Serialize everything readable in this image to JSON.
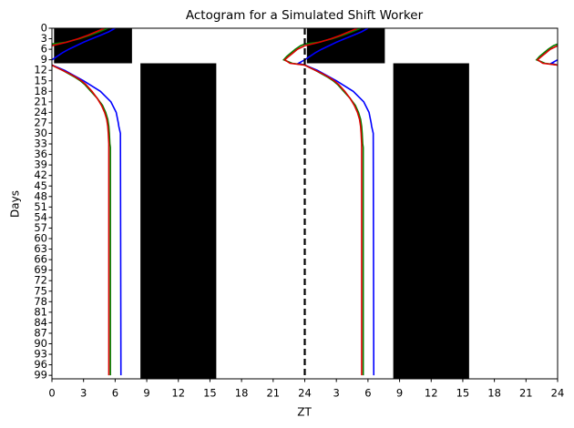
{
  "chart_data": {
    "type": "actogram",
    "title": "Actogram for a Simulated Shift Worker",
    "x_label": "ZT",
    "y_label": "Days",
    "xlim": [
      0,
      48
    ],
    "ylim": [
      0,
      100
    ],
    "y_inverted": true,
    "xticks": [
      0,
      3,
      6,
      9,
      12,
      15,
      18,
      21,
      24,
      {
        "value": 27,
        "label": "3"
      },
      {
        "value": 30,
        "label": "6"
      },
      {
        "value": 33,
        "label": "9"
      },
      {
        "value": 36,
        "label": "12"
      },
      {
        "value": 39,
        "label": "15"
      },
      {
        "value": 42,
        "label": "18"
      },
      {
        "value": 45,
        "label": "21"
      },
      {
        "value": 48,
        "label": "24"
      }
    ],
    "yticks": [
      0,
      3,
      6,
      9,
      12,
      15,
      18,
      21,
      24,
      27,
      30,
      33,
      36,
      39,
      42,
      45,
      48,
      51,
      54,
      57,
      60,
      63,
      66,
      69,
      72,
      75,
      78,
      81,
      84,
      87,
      90,
      93,
      96,
      99
    ],
    "period": 24,
    "divider": 24,
    "dark_periods": [
      {
        "from_day": 0,
        "to_day": 10,
        "start": 0.2,
        "end": 7.6
      },
      {
        "from_day": 10,
        "to_day": 100,
        "start": 8.4,
        "end": 15.6
      }
    ],
    "series": [
      {
        "color": "#0000ff",
        "days": [
          0,
          1,
          2,
          3,
          4,
          5,
          6,
          7,
          8,
          9,
          null,
          9,
          10,
          10.5,
          null,
          10.5,
          11,
          12,
          13,
          15,
          18,
          21,
          24,
          27,
          28,
          30,
          99
        ],
        "values": [
          6.0,
          5.4,
          4.6,
          3.8,
          3.0,
          2.3,
          1.6,
          1.0,
          0.5,
          0,
          null,
          24,
          23.4,
          24,
          null,
          0,
          0.4,
          1.2,
          1.8,
          3.0,
          4.6,
          5.6,
          6.1,
          6.3,
          6.35,
          6.5,
          6.55
        ]
      },
      {
        "color": "#008000",
        "days": [
          0,
          1,
          2,
          3,
          4,
          4.5,
          null,
          4.5,
          5,
          6,
          7,
          8,
          9,
          10,
          10.5,
          null,
          10.5,
          11,
          12,
          13,
          14,
          15,
          16,
          18,
          20,
          22,
          24,
          26,
          28,
          30,
          33,
          34,
          99
        ],
        "values": [
          5.3,
          4.5,
          3.6,
          2.6,
          1.3,
          0,
          null,
          24,
          23.6,
          23.1,
          22.7,
          22.3,
          22.0,
          22.8,
          24,
          null,
          0,
          0.3,
          1.0,
          1.6,
          2.2,
          2.7,
          3.1,
          3.7,
          4.3,
          4.8,
          5.1,
          5.3,
          5.4,
          5.45,
          5.5,
          5.55,
          5.55
        ]
      },
      {
        "color": "#dd0000",
        "days": [
          0,
          1,
          2,
          3,
          4,
          5,
          null,
          5,
          6,
          7,
          8,
          9,
          10,
          10.5,
          null,
          10.5,
          11,
          12,
          13,
          14,
          15,
          16,
          18,
          20,
          22,
          24,
          26,
          28,
          30,
          33,
          34,
          99
        ],
        "values": [
          5.0,
          4.2,
          3.4,
          2.5,
          1.4,
          0.0,
          null,
          24,
          23.3,
          22.9,
          22.5,
          22.1,
          22.6,
          24,
          null,
          0,
          0.3,
          1.0,
          1.7,
          2.3,
          2.8,
          3.2,
          3.8,
          4.3,
          4.7,
          5.0,
          5.2,
          5.3,
          5.35,
          5.4,
          5.4,
          5.4
        ]
      }
    ]
  }
}
